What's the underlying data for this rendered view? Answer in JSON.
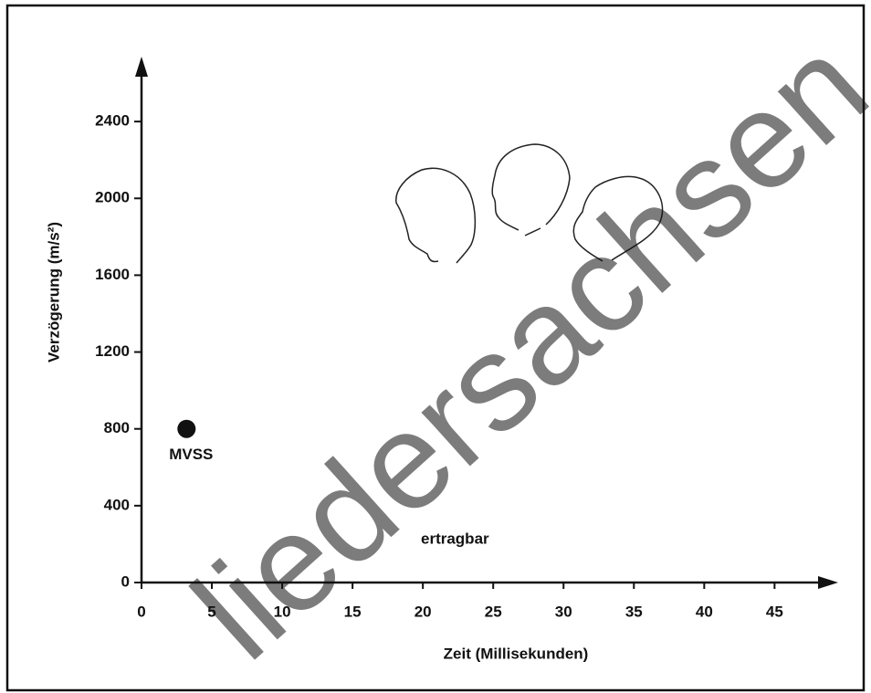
{
  "chart_data": {
    "type": "scatter",
    "xlabel": "Zeit (Millisekunden)",
    "ylabel": "Verzögerung (m/s²)",
    "series": [
      {
        "name": "MVSS",
        "color": "#111111",
        "x": [
          3.2
        ],
        "values": [
          800
        ]
      }
    ],
    "annotations": [
      "ertragbar"
    ],
    "watermark": "liedersachsen",
    "xlim": [
      0,
      49
    ],
    "ylim": [
      0,
      2700
    ],
    "xticks": [
      0,
      5,
      10,
      15,
      20,
      25,
      30,
      35,
      40,
      45
    ],
    "yticks": [
      0,
      400,
      800,
      1200,
      1600,
      2000,
      2400
    ],
    "grid": false
  }
}
